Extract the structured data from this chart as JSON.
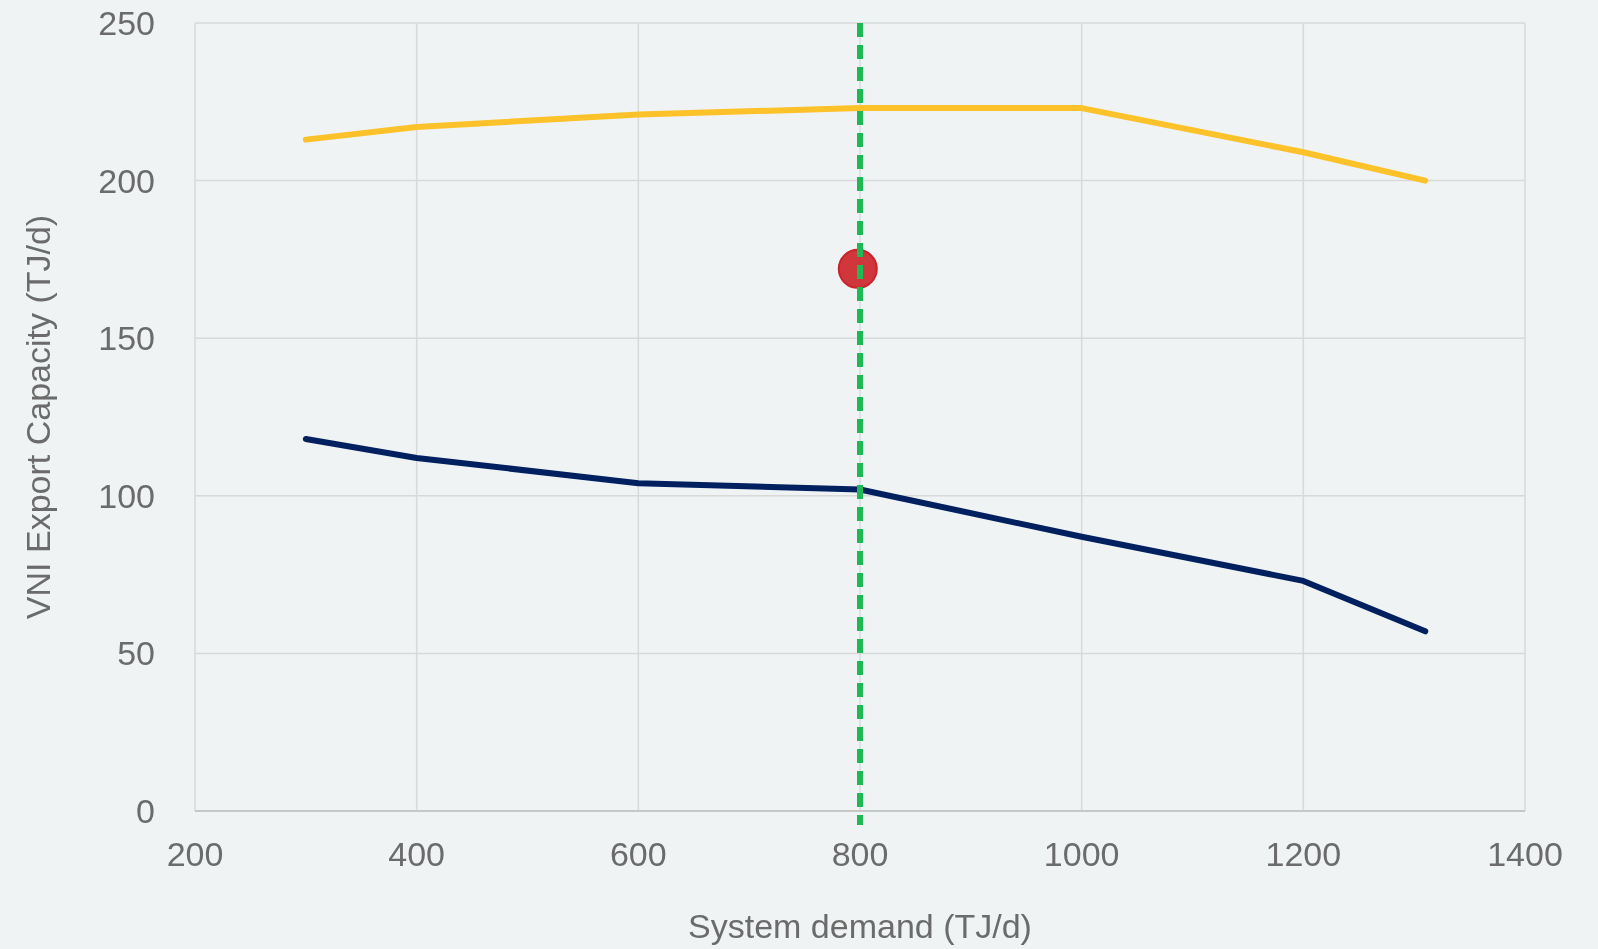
{
  "chart_data": {
    "type": "line",
    "xlabel": "System demand (TJ/d)",
    "ylabel": "VNI Export Capacity (TJ/d)",
    "x": [
      300,
      400,
      600,
      800,
      1000,
      1200,
      1310
    ],
    "series": [
      {
        "color": "#fdc12a",
        "values": [
          213,
          217,
          221,
          223,
          223,
          209,
          200
        ]
      },
      {
        "color": "#002060",
        "values": [
          118,
          112,
          104,
          102,
          87,
          73,
          57
        ]
      },
      {
        "type": "scatter",
        "marker": "circle",
        "color": "#cc2229",
        "x": [
          798
        ],
        "values": [
          172
        ]
      }
    ],
    "xlim": [
      200,
      1400
    ],
    "xticks": [
      200,
      400,
      600,
      800,
      1000,
      1200,
      1400
    ],
    "ylim": [
      0,
      250
    ],
    "yticks": [
      0,
      50,
      100,
      150,
      200,
      250
    ],
    "grid": true,
    "ref_lines": [
      {
        "axis": "x",
        "value": 800,
        "color": "#1db954",
        "line_style": "dashed"
      }
    ]
  }
}
